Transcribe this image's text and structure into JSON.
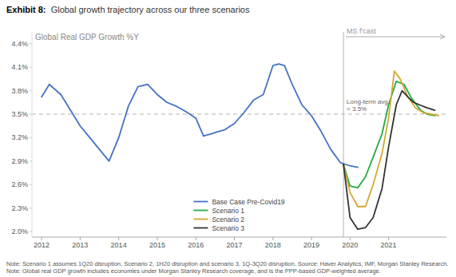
{
  "chart_data": {
    "type": "line",
    "title": "Exhibit 8:",
    "title_rest": "  Global growth trajectory across our three scenarios",
    "subtitle": "Global Real GDP Growth %Y",
    "note": "Note: Scenario 1 assumes 1Q20 disruption, Scenario 2, 1H20 disruption and scenario 3, 1Q-3Q20 disruption. Source: Haver Analytics, IMF, Morgan Stanley Research. Note: Global real GDP growth includes economies under Morgan Stanley Research coverage, and is the PPP-based GDP-weighted average.",
    "xlim": [
      2011.75,
      2022.5
    ],
    "xticks": [
      2012,
      2013,
      2014,
      2015,
      2016,
      2017,
      2018,
      2019,
      2020,
      2021
    ],
    "ylim": [
      1.93,
      4.55
    ],
    "yticks": [
      {
        "value": 2.0,
        "label": "2.0%"
      },
      {
        "value": 2.3,
        "label": "2.3%"
      },
      {
        "value": 2.6,
        "label": "2.6%"
      },
      {
        "value": 2.9,
        "label": "2.9%"
      },
      {
        "value": 3.2,
        "label": "3.2%"
      },
      {
        "value": 3.5,
        "label": "3.5%"
      },
      {
        "value": 3.8,
        "label": "3.8%"
      },
      {
        "value": 4.1,
        "label": "4.1%"
      },
      {
        "value": 4.4,
        "label": "4.4%"
      }
    ],
    "grid": false,
    "legend": "lower center",
    "hline": {
      "value": 3.5,
      "label": "Long-term avg.\n= 3.5%"
    },
    "vline": {
      "value": 2019.83,
      "label": "MS f'cast"
    },
    "series": [
      {
        "name": "Base Case Pre-Covid19",
        "color": "#4472C4",
        "x": [
          2012.0,
          2012.2,
          2012.5,
          2012.75,
          2013.0,
          2013.25,
          2013.5,
          2013.75,
          2014.0,
          2014.25,
          2014.5,
          2014.75,
          2015.0,
          2015.25,
          2015.5,
          2015.75,
          2016.0,
          2016.2,
          2016.4,
          2016.6,
          2016.75,
          2017.0,
          2017.25,
          2017.5,
          2017.75,
          2018.0,
          2018.15,
          2018.3,
          2018.5,
          2018.75,
          2019.0,
          2019.25,
          2019.5,
          2019.75,
          2020.0,
          2020.2
        ],
        "values": [
          3.72,
          3.88,
          3.75,
          3.55,
          3.35,
          3.2,
          3.05,
          2.9,
          3.2,
          3.6,
          3.85,
          3.88,
          3.75,
          3.65,
          3.6,
          3.53,
          3.45,
          3.22,
          3.25,
          3.28,
          3.3,
          3.38,
          3.52,
          3.68,
          3.75,
          4.12,
          4.14,
          4.12,
          3.88,
          3.62,
          3.48,
          3.28,
          3.05,
          2.88,
          2.84,
          2.82
        ]
      },
      {
        "name": "Scenario 1",
        "color": "#22AA44",
        "x": [
          2019.83,
          2020.0,
          2020.2,
          2020.4,
          2020.6,
          2020.83,
          2021.0,
          2021.2,
          2021.4,
          2021.6,
          2021.83,
          2022.0,
          2022.2
        ],
        "values": [
          2.86,
          2.58,
          2.56,
          2.7,
          2.95,
          3.25,
          3.62,
          3.92,
          3.88,
          3.7,
          3.55,
          3.5,
          3.48
        ]
      },
      {
        "name": "Scenario 2",
        "color": "#D4A830",
        "x": [
          2019.83,
          2020.0,
          2020.2,
          2020.4,
          2020.6,
          2020.83,
          2021.0,
          2021.15,
          2021.3,
          2021.5,
          2021.7,
          2021.9,
          2022.1,
          2022.3
        ],
        "values": [
          2.86,
          2.5,
          2.32,
          2.32,
          2.6,
          3.0,
          3.45,
          4.05,
          3.95,
          3.72,
          3.58,
          3.52,
          3.5,
          3.48
        ]
      },
      {
        "name": "Scenario 3",
        "color": "#333333",
        "x": [
          2019.83,
          2020.0,
          2020.2,
          2020.4,
          2020.6,
          2020.83,
          2021.0,
          2021.2,
          2021.35,
          2021.5,
          2021.65,
          2021.8,
          2022.0,
          2022.2
        ],
        "values": [
          2.86,
          2.18,
          2.03,
          2.05,
          2.18,
          2.55,
          3.08,
          3.62,
          3.8,
          3.72,
          3.65,
          3.62,
          3.58,
          3.55
        ]
      }
    ]
  }
}
